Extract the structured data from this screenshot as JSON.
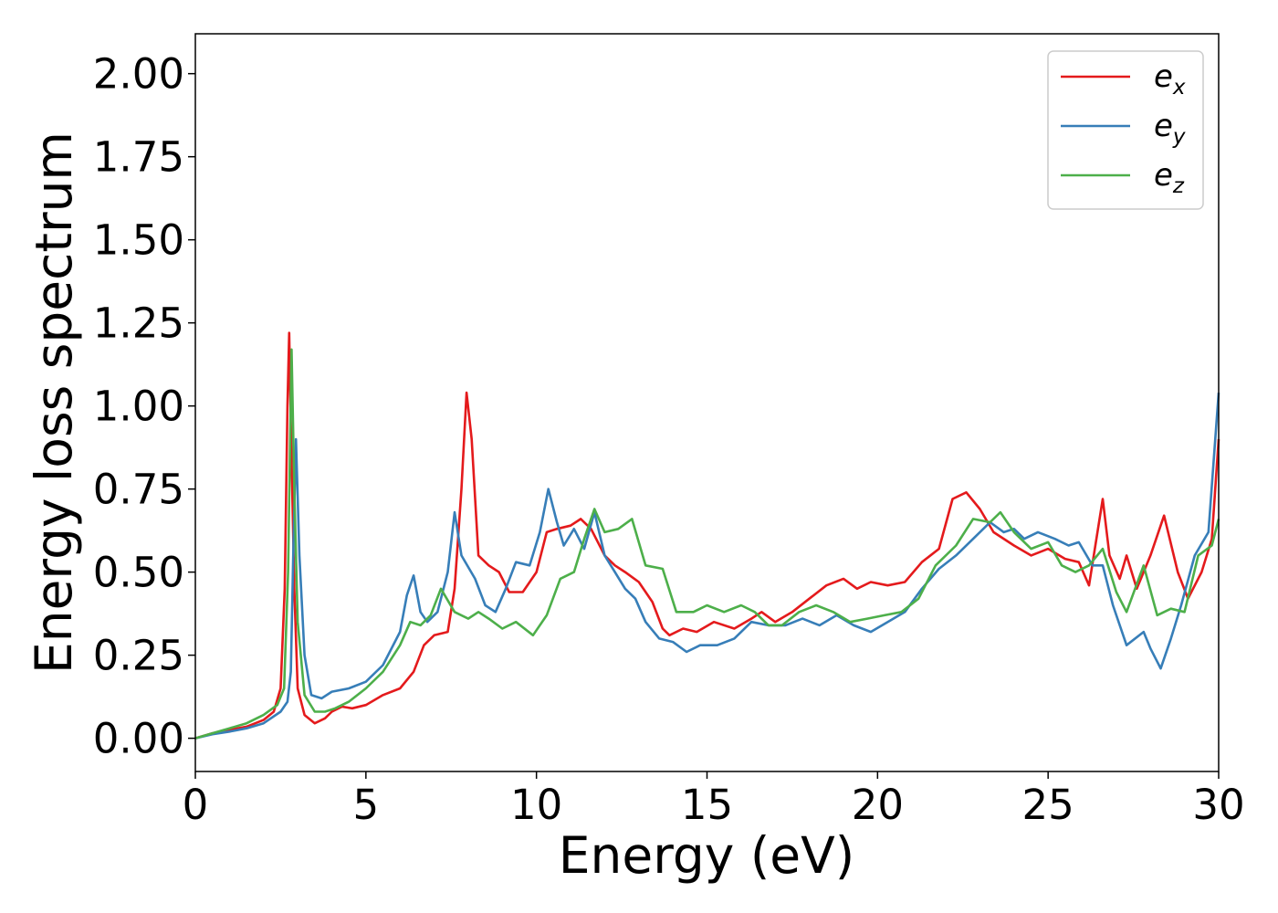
{
  "chart_data": {
    "type": "line",
    "xlabel": "Energy (eV)",
    "ylabel": "Energy loss spectrum",
    "xlim": [
      0,
      30
    ],
    "ylim": [
      -0.1,
      2.12
    ],
    "xticks": [
      "0",
      "5",
      "10",
      "15",
      "20",
      "25",
      "30"
    ],
    "yticks": [
      "0.00",
      "0.25",
      "0.50",
      "0.75",
      "1.00",
      "1.25",
      "1.50",
      "1.75",
      "2.00"
    ],
    "grid": false,
    "legend_position": "top-right",
    "series": [
      {
        "name": "e",
        "subscript": "x",
        "color": "#e41a1c",
        "points": [
          [
            0,
            0
          ],
          [
            0.5,
            0.015
          ],
          [
            1,
            0.025
          ],
          [
            1.5,
            0.035
          ],
          [
            2,
            0.055
          ],
          [
            2.3,
            0.08
          ],
          [
            2.5,
            0.15
          ],
          [
            2.62,
            0.45
          ],
          [
            2.7,
            1.0
          ],
          [
            2.75,
            1.22
          ],
          [
            2.8,
            0.95
          ],
          [
            2.9,
            0.45
          ],
          [
            3.0,
            0.15
          ],
          [
            3.2,
            0.07
          ],
          [
            3.5,
            0.045
          ],
          [
            3.8,
            0.06
          ],
          [
            4.0,
            0.08
          ],
          [
            4.3,
            0.095
          ],
          [
            4.6,
            0.09
          ],
          [
            5.0,
            0.1
          ],
          [
            5.5,
            0.13
          ],
          [
            6.0,
            0.15
          ],
          [
            6.4,
            0.2
          ],
          [
            6.7,
            0.28
          ],
          [
            7.0,
            0.31
          ],
          [
            7.4,
            0.32
          ],
          [
            7.6,
            0.45
          ],
          [
            7.8,
            0.75
          ],
          [
            7.95,
            1.04
          ],
          [
            8.1,
            0.9
          ],
          [
            8.3,
            0.55
          ],
          [
            8.6,
            0.52
          ],
          [
            8.9,
            0.5
          ],
          [
            9.2,
            0.44
          ],
          [
            9.6,
            0.44
          ],
          [
            10.0,
            0.5
          ],
          [
            10.3,
            0.62
          ],
          [
            10.6,
            0.63
          ],
          [
            11.0,
            0.64
          ],
          [
            11.3,
            0.66
          ],
          [
            11.6,
            0.63
          ],
          [
            12.0,
            0.55
          ],
          [
            12.3,
            0.52
          ],
          [
            12.6,
            0.5
          ],
          [
            13.0,
            0.47
          ],
          [
            13.4,
            0.41
          ],
          [
            13.7,
            0.33
          ],
          [
            13.9,
            0.31
          ],
          [
            14.3,
            0.33
          ],
          [
            14.7,
            0.32
          ],
          [
            15.2,
            0.35
          ],
          [
            15.8,
            0.33
          ],
          [
            16.3,
            0.36
          ],
          [
            16.6,
            0.38
          ],
          [
            17.0,
            0.35
          ],
          [
            17.5,
            0.38
          ],
          [
            18.0,
            0.42
          ],
          [
            18.5,
            0.46
          ],
          [
            19.0,
            0.48
          ],
          [
            19.4,
            0.45
          ],
          [
            19.8,
            0.47
          ],
          [
            20.3,
            0.46
          ],
          [
            20.8,
            0.47
          ],
          [
            21.3,
            0.53
          ],
          [
            21.8,
            0.57
          ],
          [
            22.2,
            0.72
          ],
          [
            22.6,
            0.74
          ],
          [
            23.0,
            0.69
          ],
          [
            23.4,
            0.62
          ],
          [
            24.0,
            0.58
          ],
          [
            24.5,
            0.55
          ],
          [
            25.0,
            0.57
          ],
          [
            25.5,
            0.54
          ],
          [
            25.9,
            0.53
          ],
          [
            26.2,
            0.46
          ],
          [
            26.6,
            0.72
          ],
          [
            26.8,
            0.55
          ],
          [
            27.1,
            0.48
          ],
          [
            27.3,
            0.55
          ],
          [
            27.6,
            0.45
          ],
          [
            28.0,
            0.55
          ],
          [
            28.4,
            0.67
          ],
          [
            28.8,
            0.5
          ],
          [
            29.1,
            0.42
          ],
          [
            29.5,
            0.5
          ],
          [
            29.8,
            0.6
          ],
          [
            30,
            0.9
          ]
        ]
      },
      {
        "name": "e",
        "subscript": "y",
        "color": "#377eb8",
        "points": [
          [
            0,
            0
          ],
          [
            0.5,
            0.012
          ],
          [
            1,
            0.02
          ],
          [
            1.5,
            0.03
          ],
          [
            2,
            0.045
          ],
          [
            2.5,
            0.08
          ],
          [
            2.7,
            0.11
          ],
          [
            2.8,
            0.2
          ],
          [
            2.88,
            0.6
          ],
          [
            2.95,
            0.9
          ],
          [
            3.05,
            0.55
          ],
          [
            3.2,
            0.25
          ],
          [
            3.4,
            0.13
          ],
          [
            3.7,
            0.12
          ],
          [
            4.0,
            0.14
          ],
          [
            4.5,
            0.15
          ],
          [
            5.0,
            0.17
          ],
          [
            5.5,
            0.22
          ],
          [
            6.0,
            0.32
          ],
          [
            6.2,
            0.43
          ],
          [
            6.4,
            0.49
          ],
          [
            6.6,
            0.38
          ],
          [
            6.8,
            0.35
          ],
          [
            7.1,
            0.38
          ],
          [
            7.4,
            0.5
          ],
          [
            7.6,
            0.68
          ],
          [
            7.8,
            0.55
          ],
          [
            8.2,
            0.48
          ],
          [
            8.5,
            0.4
          ],
          [
            8.8,
            0.38
          ],
          [
            9.1,
            0.45
          ],
          [
            9.4,
            0.53
          ],
          [
            9.8,
            0.52
          ],
          [
            10.1,
            0.62
          ],
          [
            10.35,
            0.75
          ],
          [
            10.6,
            0.65
          ],
          [
            10.8,
            0.58
          ],
          [
            11.1,
            0.63
          ],
          [
            11.4,
            0.57
          ],
          [
            11.7,
            0.68
          ],
          [
            12.0,
            0.55
          ],
          [
            12.3,
            0.5
          ],
          [
            12.6,
            0.45
          ],
          [
            12.9,
            0.42
          ],
          [
            13.2,
            0.35
          ],
          [
            13.6,
            0.3
          ],
          [
            14.0,
            0.29
          ],
          [
            14.4,
            0.26
          ],
          [
            14.8,
            0.28
          ],
          [
            15.3,
            0.28
          ],
          [
            15.8,
            0.3
          ],
          [
            16.3,
            0.35
          ],
          [
            16.8,
            0.34
          ],
          [
            17.3,
            0.34
          ],
          [
            17.8,
            0.36
          ],
          [
            18.3,
            0.34
          ],
          [
            18.8,
            0.37
          ],
          [
            19.3,
            0.34
          ],
          [
            19.8,
            0.32
          ],
          [
            20.3,
            0.35
          ],
          [
            20.8,
            0.38
          ],
          [
            21.3,
            0.45
          ],
          [
            21.8,
            0.51
          ],
          [
            22.3,
            0.55
          ],
          [
            22.8,
            0.6
          ],
          [
            23.3,
            0.65
          ],
          [
            23.7,
            0.62
          ],
          [
            24.0,
            0.63
          ],
          [
            24.3,
            0.6
          ],
          [
            24.7,
            0.62
          ],
          [
            25.2,
            0.6
          ],
          [
            25.6,
            0.58
          ],
          [
            25.9,
            0.59
          ],
          [
            26.3,
            0.52
          ],
          [
            26.6,
            0.52
          ],
          [
            26.9,
            0.4
          ],
          [
            27.3,
            0.28
          ],
          [
            27.8,
            0.32
          ],
          [
            28.0,
            0.27
          ],
          [
            28.3,
            0.21
          ],
          [
            28.6,
            0.3
          ],
          [
            28.9,
            0.4
          ],
          [
            29.3,
            0.55
          ],
          [
            29.7,
            0.62
          ],
          [
            30,
            1.04
          ]
        ]
      },
      {
        "name": "e",
        "subscript": "z",
        "color": "#4daf4a",
        "points": [
          [
            0,
            0
          ],
          [
            0.5,
            0.015
          ],
          [
            1,
            0.03
          ],
          [
            1.5,
            0.045
          ],
          [
            2,
            0.07
          ],
          [
            2.4,
            0.1
          ],
          [
            2.6,
            0.15
          ],
          [
            2.72,
            0.5
          ],
          [
            2.82,
            1.17
          ],
          [
            2.9,
            0.75
          ],
          [
            3.0,
            0.35
          ],
          [
            3.2,
            0.13
          ],
          [
            3.5,
            0.08
          ],
          [
            3.8,
            0.08
          ],
          [
            4.1,
            0.09
          ],
          [
            4.5,
            0.11
          ],
          [
            5.0,
            0.15
          ],
          [
            5.5,
            0.2
          ],
          [
            6.0,
            0.28
          ],
          [
            6.3,
            0.35
          ],
          [
            6.6,
            0.34
          ],
          [
            6.9,
            0.37
          ],
          [
            7.2,
            0.45
          ],
          [
            7.6,
            0.38
          ],
          [
            8.0,
            0.36
          ],
          [
            8.3,
            0.38
          ],
          [
            8.6,
            0.36
          ],
          [
            9.0,
            0.33
          ],
          [
            9.4,
            0.35
          ],
          [
            9.9,
            0.31
          ],
          [
            10.3,
            0.37
          ],
          [
            10.7,
            0.48
          ],
          [
            11.1,
            0.5
          ],
          [
            11.4,
            0.6
          ],
          [
            11.7,
            0.69
          ],
          [
            12.0,
            0.62
          ],
          [
            12.4,
            0.63
          ],
          [
            12.8,
            0.66
          ],
          [
            13.2,
            0.52
          ],
          [
            13.7,
            0.51
          ],
          [
            14.1,
            0.38
          ],
          [
            14.6,
            0.38
          ],
          [
            15.0,
            0.4
          ],
          [
            15.5,
            0.38
          ],
          [
            16.0,
            0.4
          ],
          [
            16.4,
            0.38
          ],
          [
            16.8,
            0.34
          ],
          [
            17.2,
            0.34
          ],
          [
            17.7,
            0.38
          ],
          [
            18.2,
            0.4
          ],
          [
            18.7,
            0.38
          ],
          [
            19.2,
            0.35
          ],
          [
            19.7,
            0.36
          ],
          [
            20.2,
            0.37
          ],
          [
            20.7,
            0.38
          ],
          [
            21.2,
            0.42
          ],
          [
            21.7,
            0.52
          ],
          [
            22.3,
            0.58
          ],
          [
            22.8,
            0.66
          ],
          [
            23.3,
            0.65
          ],
          [
            23.6,
            0.68
          ],
          [
            24.0,
            0.62
          ],
          [
            24.5,
            0.57
          ],
          [
            25.0,
            0.59
          ],
          [
            25.4,
            0.52
          ],
          [
            25.8,
            0.5
          ],
          [
            26.2,
            0.52
          ],
          [
            26.6,
            0.57
          ],
          [
            27.0,
            0.44
          ],
          [
            27.3,
            0.38
          ],
          [
            27.8,
            0.52
          ],
          [
            28.2,
            0.37
          ],
          [
            28.6,
            0.39
          ],
          [
            29.0,
            0.38
          ],
          [
            29.4,
            0.55
          ],
          [
            29.8,
            0.58
          ],
          [
            30,
            0.66
          ]
        ]
      }
    ]
  }
}
